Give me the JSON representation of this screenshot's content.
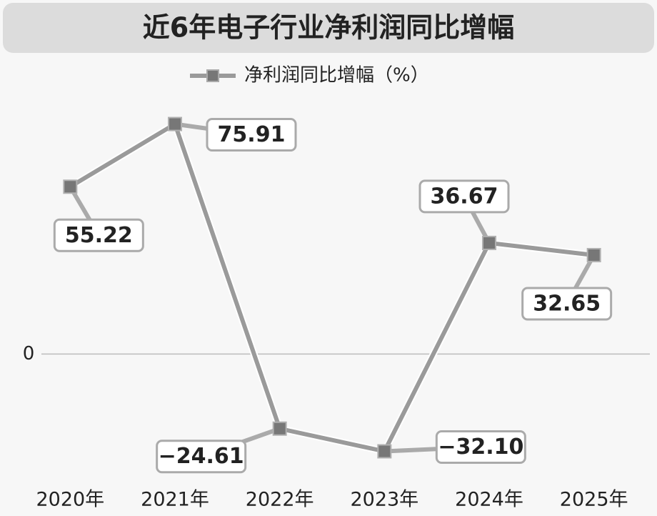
{
  "chart_data": {
    "type": "line",
    "title": "近6年电子行业净利润同比增幅",
    "categories": [
      "2020年",
      "2021年",
      "2022年",
      "2023年",
      "2024年",
      "2025年"
    ],
    "series": [
      {
        "name": "净利润同比增幅（%）",
        "color": "#9a9a9a",
        "values": [
          55.22,
          75.91,
          -24.61,
          -32.1,
          36.67,
          32.65
        ],
        "value_labels": [
          "55.22",
          "75.91",
          "−24.61",
          "−32.10",
          "36.67",
          "32.65"
        ]
      }
    ],
    "ylim": [
      -40,
      85
    ],
    "yticks": [
      0
    ],
    "grid": true
  }
}
